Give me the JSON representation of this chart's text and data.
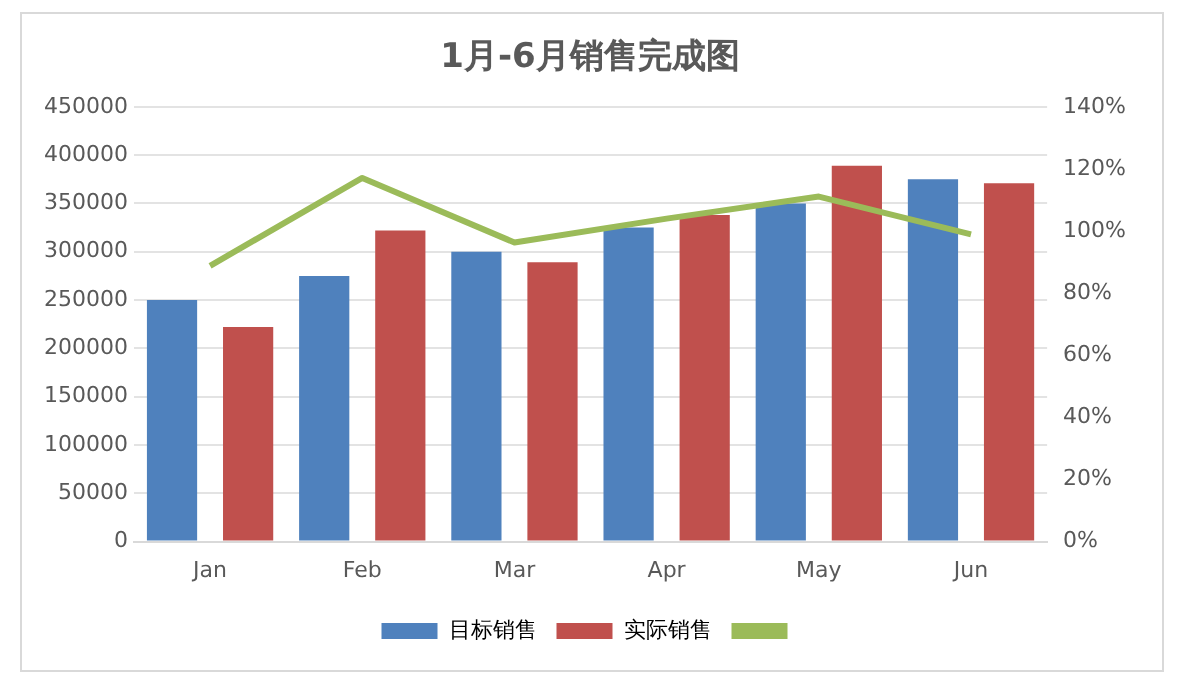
{
  "chart_data": {
    "type": "bar",
    "title": "1月-6月销售完成图",
    "categories": [
      "Jan",
      "Feb",
      "Mar",
      "Apr",
      "May",
      "Jun"
    ],
    "series": [
      {
        "name": "目标销售",
        "color": "#4f81bd",
        "values": [
          250000,
          275000,
          300000,
          325000,
          350000,
          375000
        ]
      },
      {
        "name": "实际销售",
        "color": "#c0504d",
        "values": [
          222000,
          322000,
          289000,
          338000,
          389000,
          371000
        ]
      },
      {
        "type": "line",
        "axis": "y2",
        "color": "#9bbb59",
        "values": [
          88.8,
          117.1,
          96.3,
          104,
          111.1,
          98.9
        ]
      }
    ],
    "ylim": [
      0,
      450000
    ],
    "yticks": [
      0,
      50000,
      100000,
      150000,
      200000,
      250000,
      300000,
      350000,
      400000,
      450000
    ],
    "y2lim": [
      0,
      140
    ],
    "y2ticks": [
      {
        "value": 0,
        "label": "0%"
      },
      {
        "value": 20,
        "label": "20%"
      },
      {
        "value": 40,
        "label": "40%"
      },
      {
        "value": 60,
        "label": "60%"
      },
      {
        "value": 80,
        "label": "80%"
      },
      {
        "value": 100,
        "label": "100%"
      },
      {
        "value": 120,
        "label": "120%"
      },
      {
        "value": 140,
        "label": "140%"
      }
    ],
    "grid": "y",
    "legend": "bottom",
    "marker": "none"
  }
}
